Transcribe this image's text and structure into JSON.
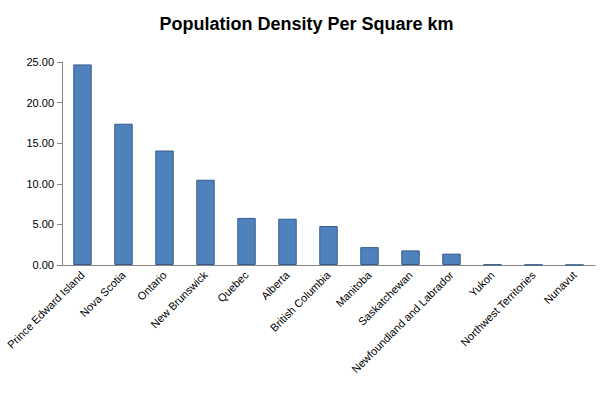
{
  "chart_data": {
    "type": "bar",
    "title": "Population Density Per Square km",
    "categories": [
      "Prince Edward Island",
      "Nova Scotia",
      "Ontario",
      "New Brunswick",
      "Quebec",
      "Alberta",
      "British Columbia",
      "Manitoba",
      "Saskatchewan",
      "Newfoundland and Labrador",
      "Yukon",
      "Northwest Territories",
      "Nunavut"
    ],
    "values": [
      24.7,
      17.4,
      14.1,
      10.5,
      5.8,
      5.7,
      4.8,
      2.2,
      1.8,
      1.4,
      0.07,
      0.04,
      0.02
    ],
    "color": "#4f81bd",
    "ylim": [
      0,
      25
    ],
    "yticks": [
      {
        "value": 0,
        "label": "0.00"
      },
      {
        "value": 5,
        "label": "5.00"
      },
      {
        "value": 10,
        "label": "10.00"
      },
      {
        "value": 15,
        "label": "15.00"
      },
      {
        "value": 20,
        "label": "20.00"
      },
      {
        "value": 25,
        "label": "25.00"
      }
    ],
    "grid": false
  }
}
